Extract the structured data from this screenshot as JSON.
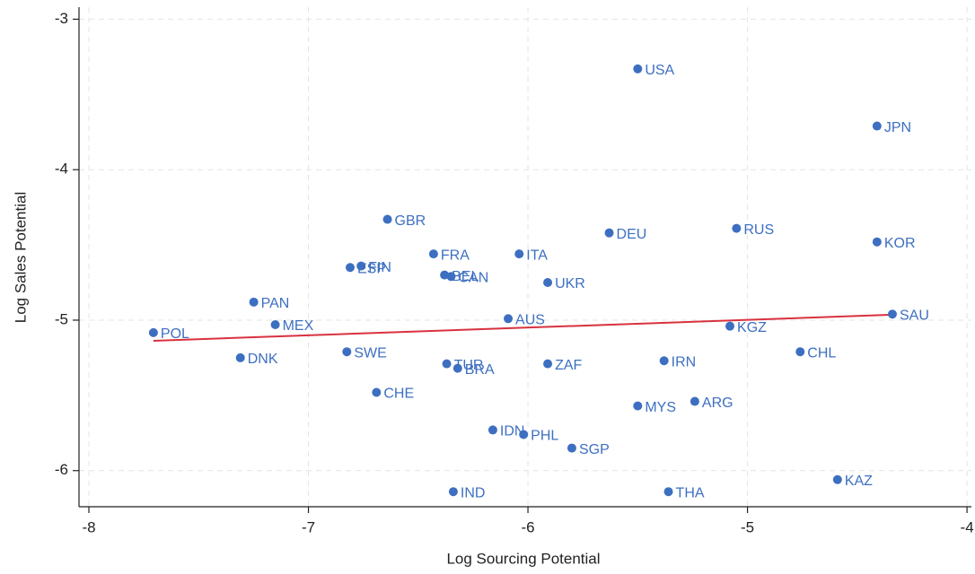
{
  "chart_data": {
    "type": "scatter",
    "xlabel": "Log Sourcing Potential",
    "ylabel": "Log Sales Potential",
    "labels": [
      "POL",
      "DNK",
      "PAN",
      "MEX",
      "SWE",
      "ESP",
      "FIN",
      "GBR",
      "CHE",
      "FRA",
      "BEL",
      "CAN",
      "TUR",
      "BRA",
      "IND",
      "AUS",
      "ITA",
      "IDN",
      "PHL",
      "UKR",
      "ZAF",
      "SGP",
      "DEU",
      "USA",
      "MYS",
      "THA",
      "IRN",
      "ARG",
      "KGZ",
      "RUS",
      "CHL",
      "KAZ",
      "JPN",
      "KOR",
      "SAU"
    ],
    "x": [
      -7.706,
      -7.31,
      -7.249,
      -7.151,
      -6.825,
      -6.81,
      -6.76,
      -6.64,
      -6.69,
      -6.43,
      -6.38,
      -6.35,
      -6.37,
      -6.32,
      -6.34,
      -6.09,
      -6.04,
      -6.16,
      -6.02,
      -5.91,
      -5.91,
      -5.8,
      -5.63,
      -5.5,
      -5.5,
      -5.36,
      -5.38,
      -5.24,
      -5.08,
      -5.05,
      -4.76,
      -4.59,
      -4.41,
      -4.41,
      -4.34
    ],
    "y": [
      -5.083,
      -5.25,
      -4.88,
      -5.03,
      -5.21,
      -4.65,
      -4.64,
      -4.33,
      -5.48,
      -4.56,
      -4.7,
      -4.71,
      -5.29,
      -5.32,
      -6.14,
      -4.99,
      -4.56,
      -5.73,
      -5.76,
      -4.75,
      -5.29,
      -5.85,
      -4.42,
      -3.33,
      -5.57,
      -6.14,
      -5.27,
      -5.54,
      -5.04,
      -4.39,
      -5.21,
      -6.06,
      -3.71,
      -4.48,
      -4.96
    ],
    "color": "#3d6fc1",
    "fit": {
      "x": [
        -7.706,
        -4.34
      ],
      "y": [
        -5.137,
        -4.964
      ],
      "color": "#d8323f"
    },
    "xlim": [
      -8.045,
      -3.98
    ],
    "ylim": [
      -6.24,
      -2.92
    ],
    "xticks": [
      -8,
      -7,
      -6,
      -5,
      -4
    ],
    "yticks": [
      -6,
      -5,
      -4,
      -3
    ],
    "grid": true
  }
}
